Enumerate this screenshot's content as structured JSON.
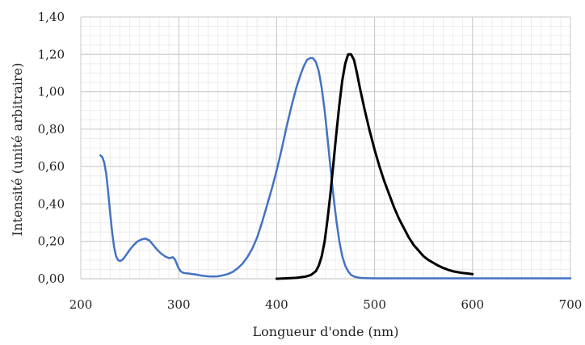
{
  "chart_data": {
    "type": "line",
    "title": "",
    "xlabel": "Longueur d'onde (nm)",
    "ylabel": "Intensité (unité arbitraire)",
    "xlim": [
      200,
      700
    ],
    "ylim": [
      0,
      1.4
    ],
    "x_ticks": [
      200,
      300,
      400,
      500,
      600,
      700
    ],
    "x_tick_labels": [
      "200",
      "300",
      "400",
      "500",
      "600",
      "700"
    ],
    "y_ticks": [
      0,
      0.2,
      0.4,
      0.6,
      0.8,
      1.0,
      1.2,
      1.4
    ],
    "y_tick_labels": [
      "0,00",
      "0,20",
      "0,40",
      "0,60",
      "0,80",
      "1,00",
      "1,20",
      "1,40"
    ],
    "grid": true,
    "legend": "none",
    "series": [
      {
        "color": "#4472C4",
        "x": [
          220,
          222,
          224,
          226,
          228,
          230,
          232,
          234,
          236,
          238,
          240,
          242,
          244,
          246,
          248,
          250,
          254,
          258,
          262,
          266,
          270,
          274,
          278,
          282,
          286,
          290,
          294,
          296,
          298,
          300,
          302,
          304,
          306,
          310,
          314,
          318,
          322,
          326,
          330,
          335,
          340,
          345,
          350,
          355,
          360,
          365,
          370,
          375,
          380,
          385,
          390,
          395,
          400,
          405,
          410,
          415,
          420,
          425,
          428,
          431,
          434,
          437,
          440,
          443,
          446,
          449,
          452,
          455,
          458,
          461,
          464,
          467,
          470,
          473,
          476,
          480,
          485,
          490,
          500,
          520,
          550,
          600,
          650,
          700
        ],
        "y": [
          0.66,
          0.65,
          0.62,
          0.56,
          0.46,
          0.35,
          0.25,
          0.17,
          0.12,
          0.1,
          0.095,
          0.1,
          0.11,
          0.125,
          0.14,
          0.155,
          0.18,
          0.2,
          0.21,
          0.215,
          0.205,
          0.18,
          0.155,
          0.135,
          0.12,
          0.11,
          0.115,
          0.105,
          0.08,
          0.055,
          0.04,
          0.033,
          0.03,
          0.028,
          0.025,
          0.022,
          0.018,
          0.015,
          0.013,
          0.012,
          0.013,
          0.018,
          0.025,
          0.036,
          0.055,
          0.08,
          0.115,
          0.16,
          0.22,
          0.3,
          0.39,
          0.48,
          0.58,
          0.69,
          0.81,
          0.92,
          1.02,
          1.1,
          1.14,
          1.17,
          1.18,
          1.18,
          1.16,
          1.11,
          1.02,
          0.9,
          0.75,
          0.59,
          0.44,
          0.31,
          0.2,
          0.12,
          0.07,
          0.04,
          0.02,
          0.01,
          0.005,
          0.003,
          0.002,
          0.002,
          0.002,
          0.002,
          0.002,
          0.002
        ]
      },
      {
        "color": "#000000",
        "x": [
          400,
          410,
          420,
          430,
          435,
          440,
          443,
          446,
          449,
          452,
          455,
          458,
          461,
          464,
          467,
          470,
          473,
          476,
          479,
          482,
          485,
          490,
          495,
          500,
          505,
          510,
          515,
          520,
          525,
          530,
          535,
          540,
          545,
          550,
          555,
          560,
          565,
          570,
          575,
          580,
          585,
          590,
          595,
          600
        ],
        "y": [
          0.0,
          0.002,
          0.005,
          0.012,
          0.02,
          0.04,
          0.07,
          0.12,
          0.2,
          0.32,
          0.46,
          0.62,
          0.78,
          0.93,
          1.06,
          1.15,
          1.2,
          1.2,
          1.17,
          1.1,
          1.02,
          0.9,
          0.79,
          0.69,
          0.6,
          0.52,
          0.45,
          0.38,
          0.32,
          0.27,
          0.22,
          0.18,
          0.15,
          0.12,
          0.1,
          0.085,
          0.07,
          0.058,
          0.048,
          0.04,
          0.035,
          0.031,
          0.028,
          0.025
        ]
      }
    ]
  }
}
